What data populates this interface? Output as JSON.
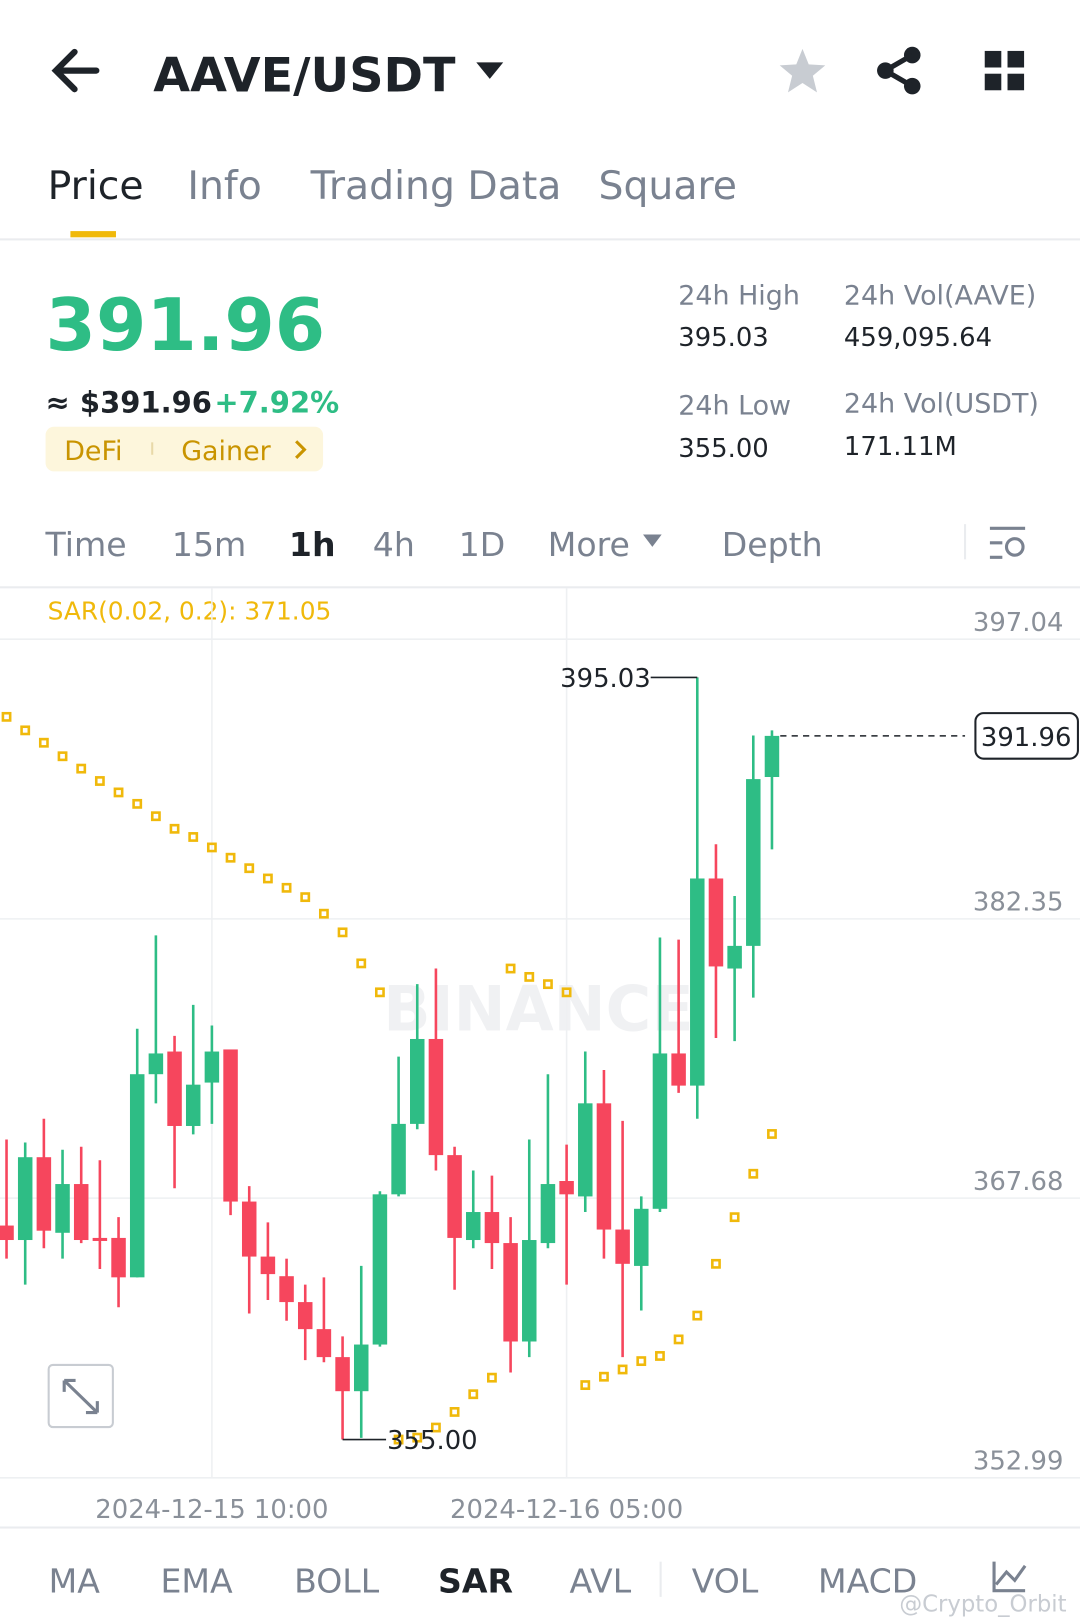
{
  "header": {
    "title": "AAVE/USDT"
  },
  "tabs": [
    "Price",
    "Info",
    "Trading Data",
    "Square"
  ],
  "price": {
    "last": "391.96",
    "usd": "≈ $391.96",
    "change": "+7.92%",
    "tags": [
      "DeFi",
      "Gainer"
    ]
  },
  "stats": [
    {
      "label": "24h High",
      "value": "395.03"
    },
    {
      "label": "24h Vol(AAVE)",
      "value": "459,095.64"
    },
    {
      "label": "24h Low",
      "value": "355.00"
    },
    {
      "label": "24h Vol(USDT)",
      "value": "171.11M"
    }
  ],
  "intervals": [
    "Time",
    "15m",
    "1h",
    "4h",
    "1D",
    "More",
    "Depth"
  ],
  "indicators": [
    "MA",
    "EMA",
    "BOLL",
    "SAR",
    "AVL",
    "VOL",
    "MACD"
  ],
  "watermarks": [
    "BINANCE",
    "@Crypto_Orbit"
  ],
  "chart_data": {
    "type": "candlestick",
    "indicator_label": "SAR(0.02, 0.2): 371.05",
    "up_color": "#2ebd85",
    "down_color": "#f6465d",
    "sar_color": "#f0b90b",
    "ylim": [
      352.99,
      399.71
    ],
    "yticks": [
      397.04,
      382.35,
      367.68,
      352.99
    ],
    "xlim": [
      -0.35,
      57.5
    ],
    "xticks": [
      {
        "value": 11,
        "label": "2024-12-15 10:00"
      },
      {
        "value": 30,
        "label": "2024-12-16 05:00"
      }
    ],
    "open": [
      366.24,
      365.48,
      369.83,
      365.86,
      368.42,
      365.59,
      365.59,
      363.52,
      374.19,
      375.38,
      371.47,
      373.75,
      375.49,
      367.5,
      364.61,
      363.58,
      362.22,
      360.8,
      359.33,
      357.54,
      359.99,
      367.88,
      371.58,
      376.04,
      369.94,
      365.48,
      366.95,
      365.32,
      360.15,
      365.32,
      368.58,
      367.77,
      372.66,
      366.03,
      364.12,
      367.12,
      375.28,
      373.59,
      384.47,
      379.74,
      380.93,
      389.8
    ],
    "high": [
      370.76,
      370.6,
      371.85,
      370.22,
      370.38,
      369.67,
      366.68,
      376.58,
      381.48,
      376.2,
      377.83,
      376.75,
      375.49,
      368.31,
      366.41,
      364.5,
      363.14,
      363.52,
      360.42,
      364.12,
      368.04,
      375.11,
      378.92,
      379.74,
      370.38,
      369.13,
      368.86,
      366.68,
      370.76,
      374.19,
      370.49,
      375.38,
      374.41,
      371.74,
      367.77,
      381.37,
      381.26,
      395.03,
      386.27,
      383.55,
      391.98,
      392.25
    ],
    "low": [
      364.5,
      363.14,
      365.05,
      364.5,
      365.32,
      363.96,
      361.95,
      363.52,
      372.66,
      368.2,
      371.03,
      371.58,
      366.79,
      361.62,
      362.33,
      361.24,
      359.17,
      359.06,
      355.0,
      355.09,
      359.88,
      367.77,
      371.3,
      369.13,
      362.87,
      365.05,
      363.96,
      358.52,
      359.33,
      365.05,
      363.14,
      366.95,
      364.5,
      359.33,
      361.78,
      366.95,
      373.21,
      371.85,
      376.09,
      375.93,
      378.21,
      386.0
    ],
    "close": [
      365.48,
      369.83,
      365.97,
      368.42,
      365.48,
      365.43,
      363.52,
      374.19,
      375.28,
      371.47,
      373.64,
      375.38,
      367.5,
      364.61,
      363.69,
      362.22,
      360.8,
      359.33,
      357.54,
      359.99,
      367.88,
      371.58,
      376.04,
      369.94,
      365.59,
      366.95,
      365.32,
      360.15,
      365.48,
      368.42,
      367.88,
      372.66,
      366.03,
      364.23,
      367.12,
      375.28,
      373.59,
      384.47,
      379.85,
      380.93,
      389.69,
      391.96
    ],
    "sar": [
      392.96,
      392.25,
      391.6,
      390.89,
      390.24,
      389.59,
      388.99,
      388.39,
      387.74,
      387.08,
      386.65,
      386.1,
      385.56,
      385.01,
      384.47,
      383.98,
      383.49,
      382.62,
      381.64,
      380.01,
      378.49,
      355.0,
      355.1,
      355.63,
      356.45,
      357.38,
      358.25,
      379.74,
      379.3,
      378.92,
      378.49,
      357.86,
      358.3,
      358.68,
      359.12,
      359.39,
      360.26,
      361.51,
      364.23,
      366.68,
      368.96,
      371.05
    ],
    "annotations": [
      {
        "value": 395.03,
        "label": "395.03"
      },
      {
        "value": 355.0,
        "label": "355.00"
      }
    ],
    "last_price": {
      "value": 391.96,
      "label": "391.96"
    }
  }
}
